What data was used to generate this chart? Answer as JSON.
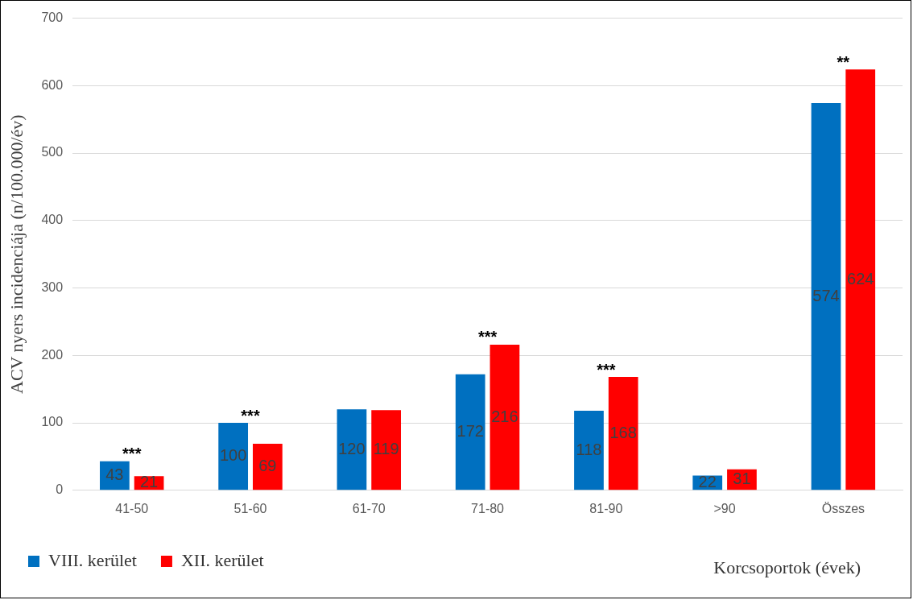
{
  "chart_data": {
    "type": "bar",
    "ylabel": "ACV nyers incidenciája (n/100.000/év)",
    "xlabel": "Korcsoportok (évek)",
    "categories": [
      "41-50",
      "51-60",
      "61-70",
      "71-80",
      "81-90",
      ">90",
      "Összes"
    ],
    "series": [
      {
        "name": "VIII. kerület",
        "color": "#0070c0",
        "values": [
          43,
          100,
          120,
          172,
          118,
          22,
          574
        ]
      },
      {
        "name": "XII. kerület",
        "color": "#ff0000",
        "values": [
          21,
          69,
          119,
          216,
          168,
          31,
          624
        ]
      }
    ],
    "ylim": [
      0,
      700
    ],
    "yticks": [
      0,
      100,
      200,
      300,
      400,
      500,
      600,
      700
    ],
    "grid": "y",
    "legend": "bottom left",
    "data_labels": true,
    "annotations": [
      {
        "text": "***",
        "x": "41-50",
        "y": 43
      },
      {
        "text": "***",
        "x": "51-60",
        "y": 100
      },
      {
        "text": "***",
        "x": "71-80",
        "y": 216
      },
      {
        "text": "***",
        "x": "81-90",
        "y": 168
      },
      {
        "text": "**",
        "x": "Összes",
        "y": 624
      }
    ]
  }
}
